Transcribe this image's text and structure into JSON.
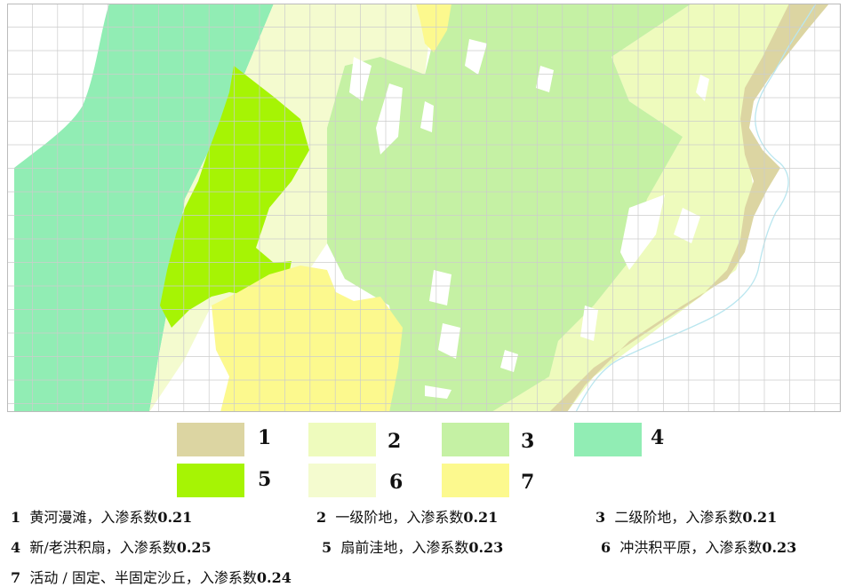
{
  "colors": {
    "yellow_river_floodplain": "#dcd5a2",
    "first_terrace": "#eefbbd",
    "second_terrace": "#c5f1a4",
    "alluvial_fan": "#91edb4",
    "fan_front_depression": "#a6f404",
    "alluvial_plain": "#f4fbcf",
    "sand_dunes": "#fcf98e",
    "river_line": "#b9e6ef",
    "grid_line": "#cccccc"
  },
  "legend": [
    {
      "key": "1",
      "color": "#dcd5a2"
    },
    {
      "key": "2",
      "color": "#eefbbd"
    },
    {
      "key": "3",
      "color": "#c5f1a4"
    },
    {
      "key": "4",
      "color": "#91edb4"
    },
    {
      "key": "5",
      "color": "#a6f404"
    },
    {
      "key": "6",
      "color": "#f4fbcf"
    },
    {
      "key": "7",
      "color": "#fcf98e"
    }
  ],
  "descriptions": [
    {
      "num": "1",
      "name": "黄河漫滩，入渗系数",
      "value": "0.21"
    },
    {
      "num": "2",
      "name": "一级阶地，入渗系数",
      "value": "0.21"
    },
    {
      "num": "3",
      "name": "二级阶地，入渗系数",
      "value": "0.21"
    },
    {
      "num": "4",
      "name": "新/老洪积扇，入渗系数",
      "value": "0.25"
    },
    {
      "num": "5",
      "name": "扇前洼地，入渗系数",
      "value": "0.23"
    },
    {
      "num": "6",
      "name": "冲洪积平原，入渗系数",
      "value": "0.23"
    },
    {
      "num": "7",
      "name": "活动 / 固定、半固定沙丘，入渗系数",
      "value": "0.24"
    }
  ]
}
